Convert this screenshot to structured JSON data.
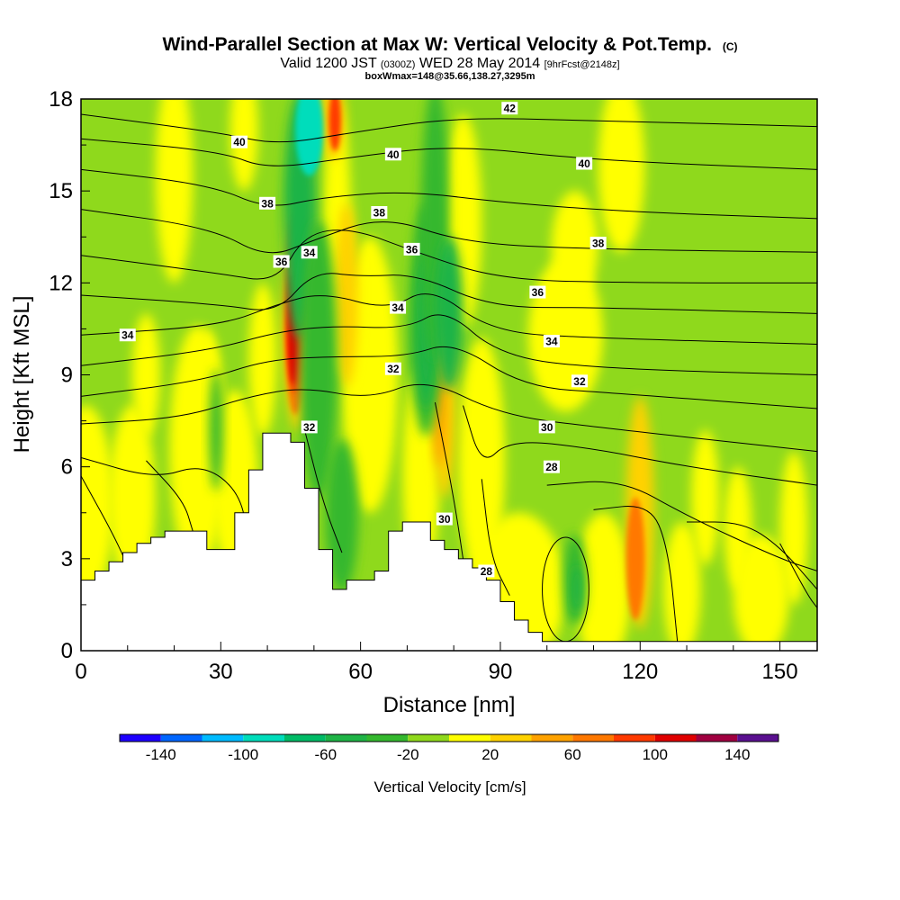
{
  "chart_data": {
    "type": "heatmap",
    "title": "Wind-Parallel Section at Max W: Vertical Velocity & Pot.Temp.",
    "title_mark": "(C)",
    "subtitle": "Valid 1200 JST",
    "subtitle_utc": "(0300Z)",
    "subtitle_date": "WED 28 May 2014",
    "subtitle_fcst": "[9hrFcst@2148z]",
    "subtitle2": "boxWmax=148@35.66,138.27,3295m",
    "xlabel": "Distance [nm]",
    "ylabel": "Height [Kft MSL]",
    "xlim": [
      0,
      158
    ],
    "ylim": [
      0,
      18
    ],
    "xticks": [
      0,
      30,
      60,
      90,
      120,
      150
    ],
    "yticks": [
      0,
      3,
      6,
      9,
      12,
      15,
      18
    ],
    "colorbar": {
      "label": "Vertical Velocity [cm/s]",
      "tick_labels": [
        "-140",
        "-100",
        "-60",
        "-20",
        "20",
        "60",
        "100",
        "140"
      ],
      "levels": [
        -160,
        -140,
        -120,
        -100,
        -80,
        -60,
        -40,
        -20,
        0,
        20,
        40,
        60,
        80,
        100,
        120,
        140,
        160
      ],
      "colors": [
        "#1e00ff",
        "#0066ff",
        "#00bbff",
        "#00ddbb",
        "#00bb66",
        "#1fb446",
        "#34b82e",
        "#8fd91c",
        "#ffff00",
        "#ffd200",
        "#ffa200",
        "#ff7800",
        "#ff3a00",
        "#e00000",
        "#a00040",
        "#5a1090"
      ]
    },
    "theta_contour_labels": [
      {
        "x": 10,
        "y": 10.3,
        "label": "34"
      },
      {
        "x": 34,
        "y": 16.6,
        "label": "40"
      },
      {
        "x": 40,
        "y": 14.6,
        "label": "38"
      },
      {
        "x": 43,
        "y": 12.7,
        "label": "36"
      },
      {
        "x": 49,
        "y": 13.0,
        "label": "34"
      },
      {
        "x": 49,
        "y": 7.3,
        "label": "32"
      },
      {
        "x": 67,
        "y": 16.2,
        "label": "40"
      },
      {
        "x": 64,
        "y": 14.3,
        "label": "38"
      },
      {
        "x": 71,
        "y": 13.1,
        "label": "36"
      },
      {
        "x": 68,
        "y": 11.2,
        "label": "34"
      },
      {
        "x": 67,
        "y": 9.2,
        "label": "32"
      },
      {
        "x": 78,
        "y": 4.3,
        "label": "30"
      },
      {
        "x": 87,
        "y": 2.6,
        "label": "28"
      },
      {
        "x": 92,
        "y": 17.7,
        "label": "42"
      },
      {
        "x": 108,
        "y": 15.9,
        "label": "40"
      },
      {
        "x": 111,
        "y": 13.3,
        "label": "38"
      },
      {
        "x": 98,
        "y": 11.7,
        "label": "36"
      },
      {
        "x": 101,
        "y": 10.1,
        "label": "34"
      },
      {
        "x": 107,
        "y": 8.8,
        "label": "32"
      },
      {
        "x": 100,
        "y": 7.3,
        "label": "30"
      },
      {
        "x": 101,
        "y": 6.0,
        "label": "28"
      }
    ],
    "terrain_height_kft": [
      {
        "x": 0,
        "y": 2.3
      },
      {
        "x": 3,
        "y": 2.6
      },
      {
        "x": 6,
        "y": 2.9
      },
      {
        "x": 9,
        "y": 3.2
      },
      {
        "x": 12,
        "y": 3.5
      },
      {
        "x": 15,
        "y": 3.7
      },
      {
        "x": 18,
        "y": 3.9
      },
      {
        "x": 21,
        "y": 3.9
      },
      {
        "x": 24,
        "y": 3.9
      },
      {
        "x": 27,
        "y": 3.3
      },
      {
        "x": 30,
        "y": 3.3
      },
      {
        "x": 33,
        "y": 4.5
      },
      {
        "x": 36,
        "y": 5.9
      },
      {
        "x": 39,
        "y": 7.1
      },
      {
        "x": 42,
        "y": 7.1
      },
      {
        "x": 45,
        "y": 6.8
      },
      {
        "x": 48,
        "y": 5.3
      },
      {
        "x": 51,
        "y": 3.3
      },
      {
        "x": 54,
        "y": 2.0
      },
      {
        "x": 57,
        "y": 2.3
      },
      {
        "x": 60,
        "y": 2.3
      },
      {
        "x": 63,
        "y": 2.6
      },
      {
        "x": 66,
        "y": 3.9
      },
      {
        "x": 69,
        "y": 4.2
      },
      {
        "x": 72,
        "y": 4.2
      },
      {
        "x": 75,
        "y": 3.6
      },
      {
        "x": 78,
        "y": 3.3
      },
      {
        "x": 81,
        "y": 3.0
      },
      {
        "x": 84,
        "y": 2.7
      },
      {
        "x": 87,
        "y": 2.3
      },
      {
        "x": 90,
        "y": 1.6
      },
      {
        "x": 93,
        "y": 1.0
      },
      {
        "x": 96,
        "y": 0.6
      },
      {
        "x": 99,
        "y": 0.3
      },
      {
        "x": 102,
        "y": 0.3
      },
      {
        "x": 158,
        "y": 0.3
      }
    ]
  }
}
